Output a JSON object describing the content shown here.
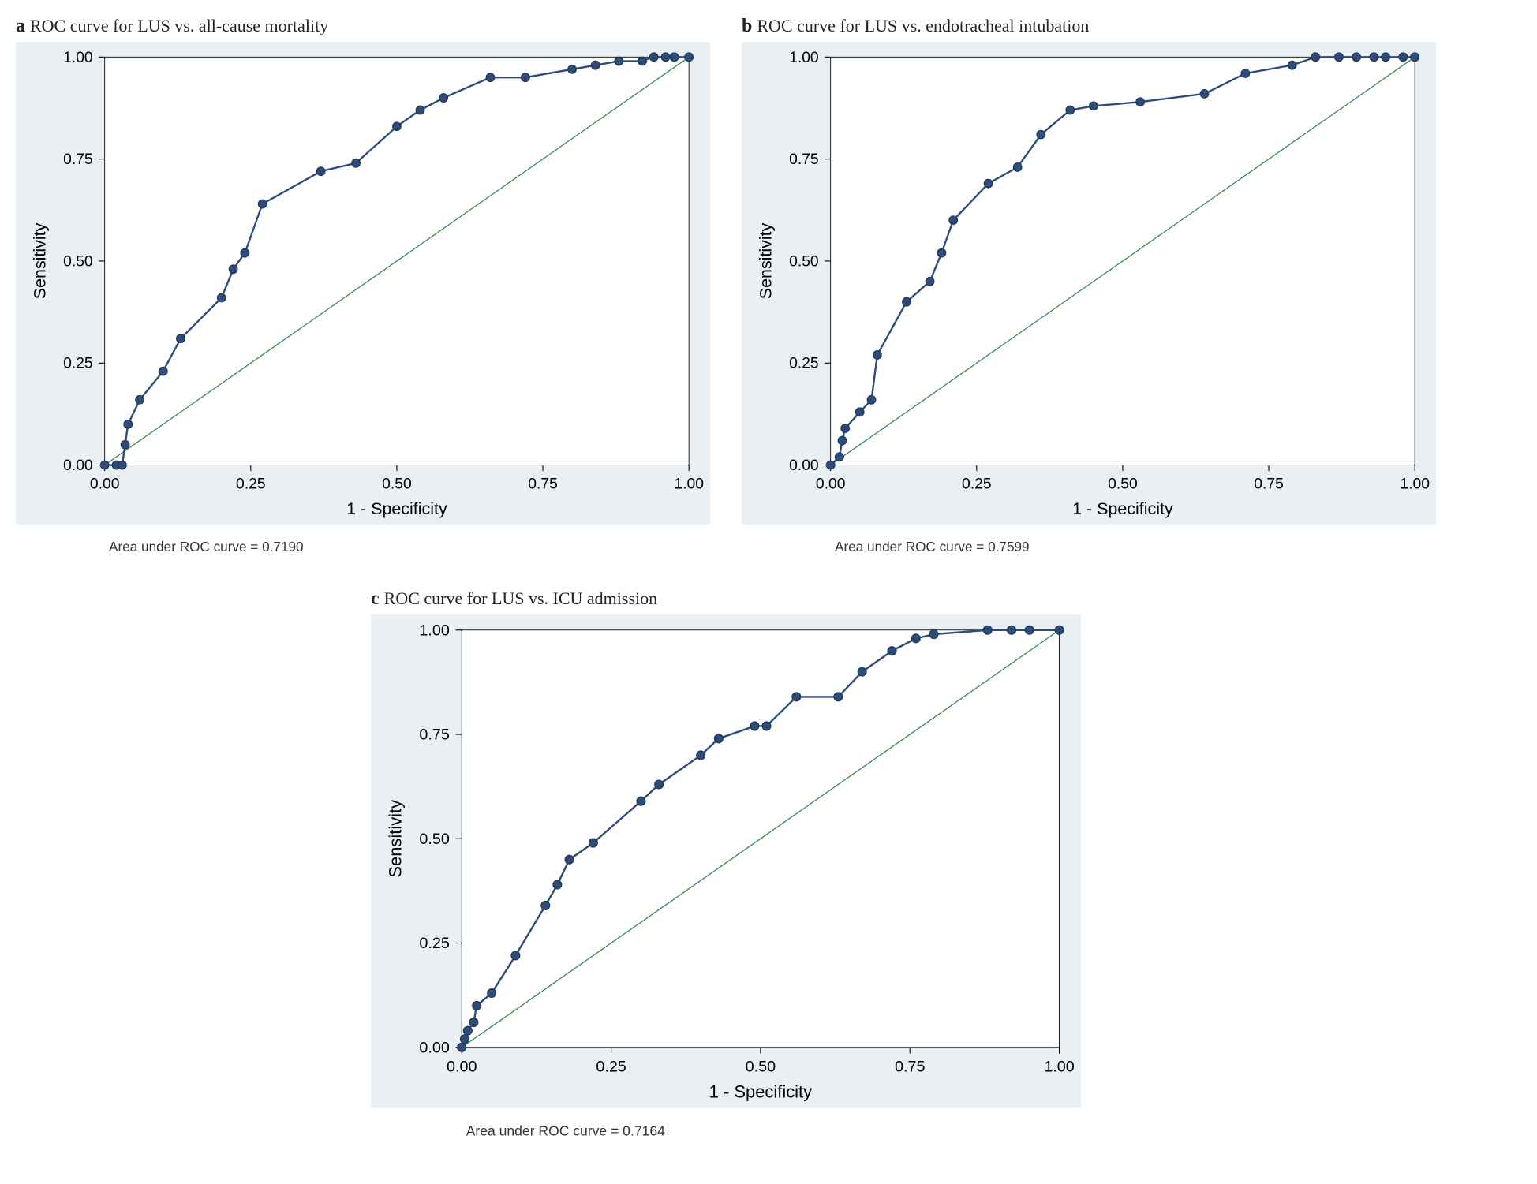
{
  "layout": {
    "plot_bg": "#e9eff2",
    "page_bg": "#ffffff",
    "axis_color": "#000000",
    "grid_color": "none",
    "label_font_size": 20,
    "tick_font_size": 18,
    "caption_font_size": 16,
    "roc_line_color": "#2d4c7a",
    "roc_line_width": 2.2,
    "marker_fill": "#2d4c7a",
    "marker_stroke": "#1e3452",
    "marker_radius": 5,
    "diag_color": "#3c8a54",
    "diag_width": 1.2,
    "xlabel": "1 - Specificity",
    "ylabel": "Sensitivity",
    "xlim": [
      0,
      1
    ],
    "ylim": [
      0,
      1
    ],
    "xticks": [
      0.0,
      0.25,
      0.5,
      0.75,
      1.0
    ],
    "yticks": [
      0.0,
      0.25,
      0.5,
      0.75,
      1.0
    ],
    "xticklabels": [
      "0.00",
      "0.25",
      "0.50",
      "0.75",
      "1.00"
    ],
    "yticklabels": [
      "0.00",
      "0.25",
      "0.50",
      "0.75",
      "1.00"
    ]
  },
  "panels": [
    {
      "id": "a",
      "letter": "a",
      "title": "ROC curve for LUS vs. all-cause mortality",
      "auc_label": "Area under ROC curve = 0.7190",
      "roc_points": [
        [
          0.0,
          0.0
        ],
        [
          0.02,
          0.0
        ],
        [
          0.03,
          0.0
        ],
        [
          0.035,
          0.05
        ],
        [
          0.04,
          0.1
        ],
        [
          0.06,
          0.16
        ],
        [
          0.1,
          0.23
        ],
        [
          0.13,
          0.31
        ],
        [
          0.2,
          0.41
        ],
        [
          0.22,
          0.48
        ],
        [
          0.24,
          0.52
        ],
        [
          0.27,
          0.64
        ],
        [
          0.37,
          0.72
        ],
        [
          0.43,
          0.74
        ],
        [
          0.5,
          0.83
        ],
        [
          0.54,
          0.87
        ],
        [
          0.58,
          0.9
        ],
        [
          0.66,
          0.95
        ],
        [
          0.72,
          0.95
        ],
        [
          0.8,
          0.97
        ],
        [
          0.84,
          0.98
        ],
        [
          0.88,
          0.99
        ],
        [
          0.92,
          0.99
        ],
        [
          0.94,
          1.0
        ],
        [
          0.96,
          1.0
        ],
        [
          0.975,
          1.0
        ],
        [
          1.0,
          1.0
        ]
      ]
    },
    {
      "id": "b",
      "letter": "b",
      "title": "ROC curve for LUS vs. endotracheal intubation",
      "auc_label": "Area under ROC curve = 0.7599",
      "roc_points": [
        [
          0.0,
          0.0
        ],
        [
          0.015,
          0.02
        ],
        [
          0.02,
          0.06
        ],
        [
          0.025,
          0.09
        ],
        [
          0.05,
          0.13
        ],
        [
          0.07,
          0.16
        ],
        [
          0.08,
          0.27
        ],
        [
          0.13,
          0.4
        ],
        [
          0.17,
          0.45
        ],
        [
          0.19,
          0.52
        ],
        [
          0.21,
          0.6
        ],
        [
          0.27,
          0.69
        ],
        [
          0.32,
          0.73
        ],
        [
          0.36,
          0.81
        ],
        [
          0.41,
          0.87
        ],
        [
          0.45,
          0.88
        ],
        [
          0.53,
          0.89
        ],
        [
          0.64,
          0.91
        ],
        [
          0.71,
          0.96
        ],
        [
          0.79,
          0.98
        ],
        [
          0.83,
          1.0
        ],
        [
          0.87,
          1.0
        ],
        [
          0.9,
          1.0
        ],
        [
          0.93,
          1.0
        ],
        [
          0.95,
          1.0
        ],
        [
          0.98,
          1.0
        ],
        [
          1.0,
          1.0
        ]
      ]
    },
    {
      "id": "c",
      "letter": "c",
      "title": "ROC curve for LUS vs. ICU admission",
      "auc_label": "Area under ROC curve = 0.7164",
      "roc_points": [
        [
          0.0,
          0.0
        ],
        [
          0.005,
          0.02
        ],
        [
          0.01,
          0.04
        ],
        [
          0.02,
          0.06
        ],
        [
          0.025,
          0.1
        ],
        [
          0.05,
          0.13
        ],
        [
          0.09,
          0.22
        ],
        [
          0.14,
          0.34
        ],
        [
          0.16,
          0.39
        ],
        [
          0.18,
          0.45
        ],
        [
          0.22,
          0.49
        ],
        [
          0.3,
          0.59
        ],
        [
          0.33,
          0.63
        ],
        [
          0.4,
          0.7
        ],
        [
          0.43,
          0.74
        ],
        [
          0.49,
          0.77
        ],
        [
          0.51,
          0.77
        ],
        [
          0.56,
          0.84
        ],
        [
          0.63,
          0.84
        ],
        [
          0.67,
          0.9
        ],
        [
          0.72,
          0.95
        ],
        [
          0.76,
          0.98
        ],
        [
          0.79,
          0.99
        ],
        [
          0.88,
          1.0
        ],
        [
          0.92,
          1.0
        ],
        [
          0.95,
          1.0
        ],
        [
          1.0,
          1.0
        ]
      ]
    }
  ]
}
